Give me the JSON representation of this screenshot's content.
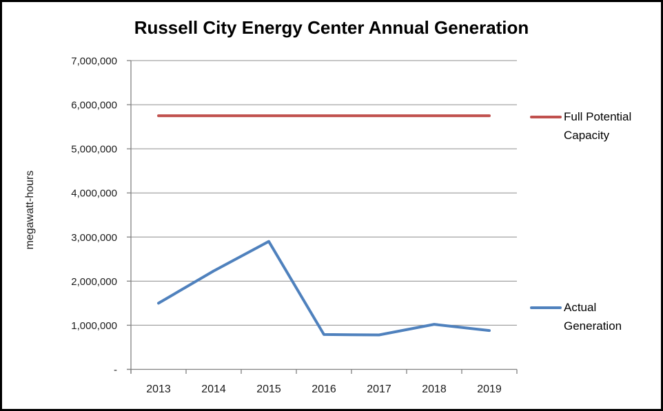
{
  "window": {
    "background": "#ffffff",
    "border_color": "#000000"
  },
  "chart_data": {
    "type": "line",
    "title": "Russell City Energy Center Annual Generation",
    "xlabel": "",
    "ylabel": "megawatt-hours",
    "categories": [
      "2013",
      "2014",
      "2015",
      "2016",
      "2017",
      "2018",
      "2019"
    ],
    "series": [
      {
        "name": "Full Potential Capacity",
        "color": "#C0504D",
        "values": [
          5750000,
          5750000,
          5750000,
          5750000,
          5750000,
          5750000,
          5750000
        ]
      },
      {
        "name": "Actual Generation",
        "color": "#4F81BD",
        "values": [
          1500000,
          2230000,
          2900000,
          790000,
          780000,
          1020000,
          880000
        ]
      }
    ],
    "ylim": [
      0,
      7000000
    ],
    "y_tick_step": 1000000,
    "y_tick_labels": [
      "-",
      "1,000,000",
      "2,000,000",
      "3,000,000",
      "4,000,000",
      "5,000,000",
      "6,000,000",
      "7,000,000"
    ],
    "grid": true,
    "gridline_color": "#8C8C8C",
    "axis_color": "#808080",
    "legend_position": "right"
  },
  "legend": {
    "items": [
      {
        "line1": "Full Potential",
        "line2": "Capacity",
        "color": "#C0504D"
      },
      {
        "line1": "Actual",
        "line2": "Generation",
        "color": "#4F81BD"
      }
    ]
  }
}
